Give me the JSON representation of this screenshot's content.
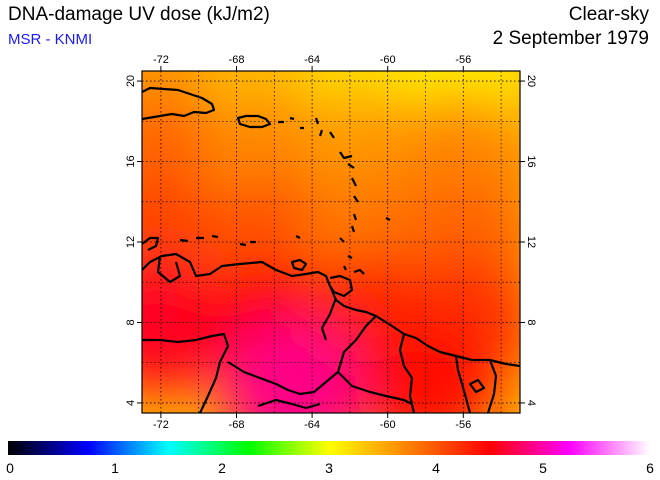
{
  "header": {
    "title": "DNA-damage UV dose (kJ/m2)",
    "source": "MSR - KNMI",
    "condition": "Clear-sky",
    "date": "2 September 1979"
  },
  "map": {
    "lon_range": [
      -73,
      -53
    ],
    "lat_range": [
      3.5,
      20.5
    ],
    "lon_ticks": [
      -72,
      -68,
      -64,
      -60,
      -56
    ],
    "lat_ticks": [
      4,
      8,
      12,
      16,
      20
    ],
    "lon_tick_labels": [
      "-72",
      "-68",
      "-64",
      "-60",
      "-56"
    ],
    "lat_tick_labels": [
      "4",
      "8",
      "12",
      "16",
      "20"
    ],
    "gridlines": "dotted"
  },
  "colorbar": {
    "min": 0,
    "max": 6,
    "labels": [
      "0",
      "1",
      "2",
      "3",
      "4",
      "5",
      "6"
    ],
    "colors": [
      "#000000",
      "#0000ff",
      "#00ffff",
      "#00ff00",
      "#ffff00",
      "#ff8000",
      "#ff0000",
      "#ff00ff",
      "#ffffff"
    ]
  },
  "dose_field": [
    {
      "lon": -72,
      "lat": 20,
      "value": 3.6
    },
    {
      "lon": -66,
      "lat": 20,
      "value": 3.4
    },
    {
      "lon": -61,
      "lat": 20,
      "value": 3.2
    },
    {
      "lon": -56,
      "lat": 20,
      "value": 3.1
    },
    {
      "lon": -72,
      "lat": 16,
      "value": 3.9
    },
    {
      "lon": -66,
      "lat": 16,
      "value": 3.7
    },
    {
      "lon": -61,
      "lat": 16,
      "value": 3.6
    },
    {
      "lon": -56,
      "lat": 16,
      "value": 3.7
    },
    {
      "lon": -72,
      "lat": 12,
      "value": 4.1
    },
    {
      "lon": -66,
      "lat": 12,
      "value": 4.0
    },
    {
      "lon": -61,
      "lat": 12,
      "value": 3.8
    },
    {
      "lon": -56,
      "lat": 12,
      "value": 3.9
    },
    {
      "lon": -72,
      "lat": 8,
      "value": 4.6
    },
    {
      "lon": -66,
      "lat": 8,
      "value": 4.5
    },
    {
      "lon": -61,
      "lat": 8,
      "value": 4.3
    },
    {
      "lon": -56,
      "lat": 8,
      "value": 4.2
    },
    {
      "lon": -65,
      "lat": 4.5,
      "value": 4.9
    },
    {
      "lon": -58,
      "lat": 5,
      "value": 4.4
    }
  ]
}
